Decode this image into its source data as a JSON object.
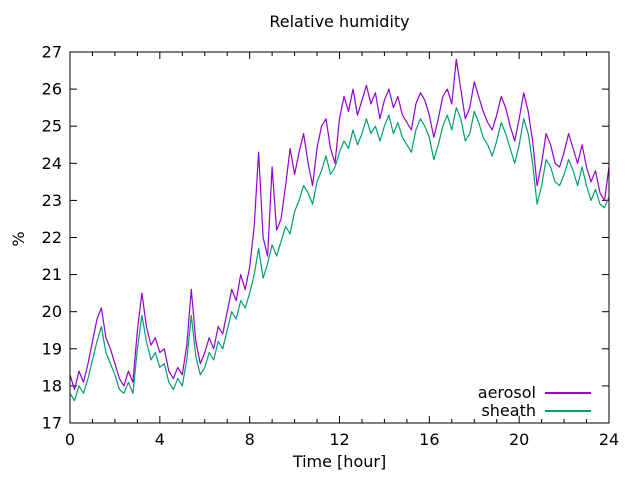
{
  "chart_data": {
    "type": "line",
    "title": "Relative humidity",
    "xlabel": "Time [hour]",
    "ylabel": "%",
    "xlim": [
      0,
      24
    ],
    "ylim": [
      17,
      27
    ],
    "xticks": [
      0,
      4,
      8,
      12,
      16,
      20,
      24
    ],
    "x_minor_tick_step": 1,
    "yticks": [
      17,
      18,
      19,
      20,
      21,
      22,
      23,
      24,
      25,
      26,
      27
    ],
    "grid": false,
    "legend_position": "inside bottom-right",
    "frame_color": "#000000",
    "x_start": 0,
    "x_step": 0.2,
    "series": [
      {
        "name": "aerosol",
        "color": "#9400d3",
        "values": [
          18.3,
          17.9,
          18.4,
          18.1,
          18.6,
          19.2,
          19.8,
          20.1,
          19.3,
          19.0,
          18.6,
          18.2,
          18.0,
          18.4,
          18.1,
          19.5,
          20.5,
          19.6,
          19.1,
          19.3,
          18.9,
          19.0,
          18.4,
          18.2,
          18.5,
          18.3,
          19.1,
          20.6,
          19.2,
          18.6,
          18.9,
          19.3,
          19.0,
          19.6,
          19.4,
          20.0,
          20.6,
          20.3,
          21.0,
          20.6,
          21.2,
          22.3,
          24.3,
          22.0,
          21.5,
          23.9,
          22.2,
          22.5,
          23.4,
          24.4,
          23.7,
          24.3,
          24.8,
          24.0,
          23.4,
          24.4,
          25.0,
          25.2,
          24.4,
          24.0,
          25.2,
          25.8,
          25.4,
          26.0,
          25.3,
          25.7,
          26.1,
          25.6,
          25.9,
          25.2,
          25.7,
          26.0,
          25.5,
          25.8,
          25.3,
          25.1,
          24.9,
          25.6,
          25.9,
          25.7,
          25.3,
          24.7,
          25.2,
          25.8,
          26.0,
          25.6,
          26.8,
          26.0,
          25.2,
          25.5,
          26.2,
          25.8,
          25.4,
          25.1,
          24.9,
          25.3,
          25.8,
          25.5,
          25.0,
          24.6,
          25.2,
          25.9,
          25.4,
          24.6,
          23.4,
          24.0,
          24.8,
          24.5,
          24.0,
          23.9,
          24.3,
          24.8,
          24.4,
          24.0,
          24.5,
          23.9,
          23.5,
          23.8,
          23.2,
          23.0,
          23.9
        ]
      },
      {
        "name": "sheath",
        "color": "#009e73",
        "values": [
          17.8,
          17.6,
          18.0,
          17.8,
          18.2,
          18.7,
          19.2,
          19.6,
          18.9,
          18.6,
          18.3,
          17.9,
          17.8,
          18.1,
          17.8,
          19.0,
          19.9,
          19.2,
          18.7,
          18.9,
          18.5,
          18.6,
          18.1,
          17.9,
          18.2,
          18.0,
          18.7,
          19.9,
          18.8,
          18.3,
          18.5,
          18.9,
          18.7,
          19.2,
          19.0,
          19.5,
          20.0,
          19.8,
          20.3,
          20.1,
          20.5,
          21.0,
          21.7,
          20.9,
          21.3,
          21.8,
          21.5,
          21.9,
          22.3,
          22.1,
          22.7,
          23.0,
          23.4,
          23.2,
          22.9,
          23.5,
          23.8,
          24.2,
          23.7,
          23.9,
          24.3,
          24.6,
          24.4,
          24.9,
          24.5,
          24.8,
          25.2,
          24.8,
          25.0,
          24.6,
          25.0,
          25.3,
          24.8,
          25.1,
          24.7,
          24.5,
          24.3,
          24.9,
          25.2,
          25.0,
          24.7,
          24.1,
          24.5,
          25.0,
          25.3,
          24.9,
          25.5,
          25.2,
          24.6,
          24.8,
          25.4,
          25.1,
          24.7,
          24.5,
          24.2,
          24.6,
          25.1,
          24.8,
          24.4,
          24.0,
          24.5,
          25.2,
          24.8,
          24.0,
          22.9,
          23.4,
          24.1,
          23.9,
          23.5,
          23.4,
          23.7,
          24.1,
          23.8,
          23.4,
          23.9,
          23.4,
          23.0,
          23.3,
          22.9,
          22.8,
          23.1
        ]
      }
    ]
  }
}
